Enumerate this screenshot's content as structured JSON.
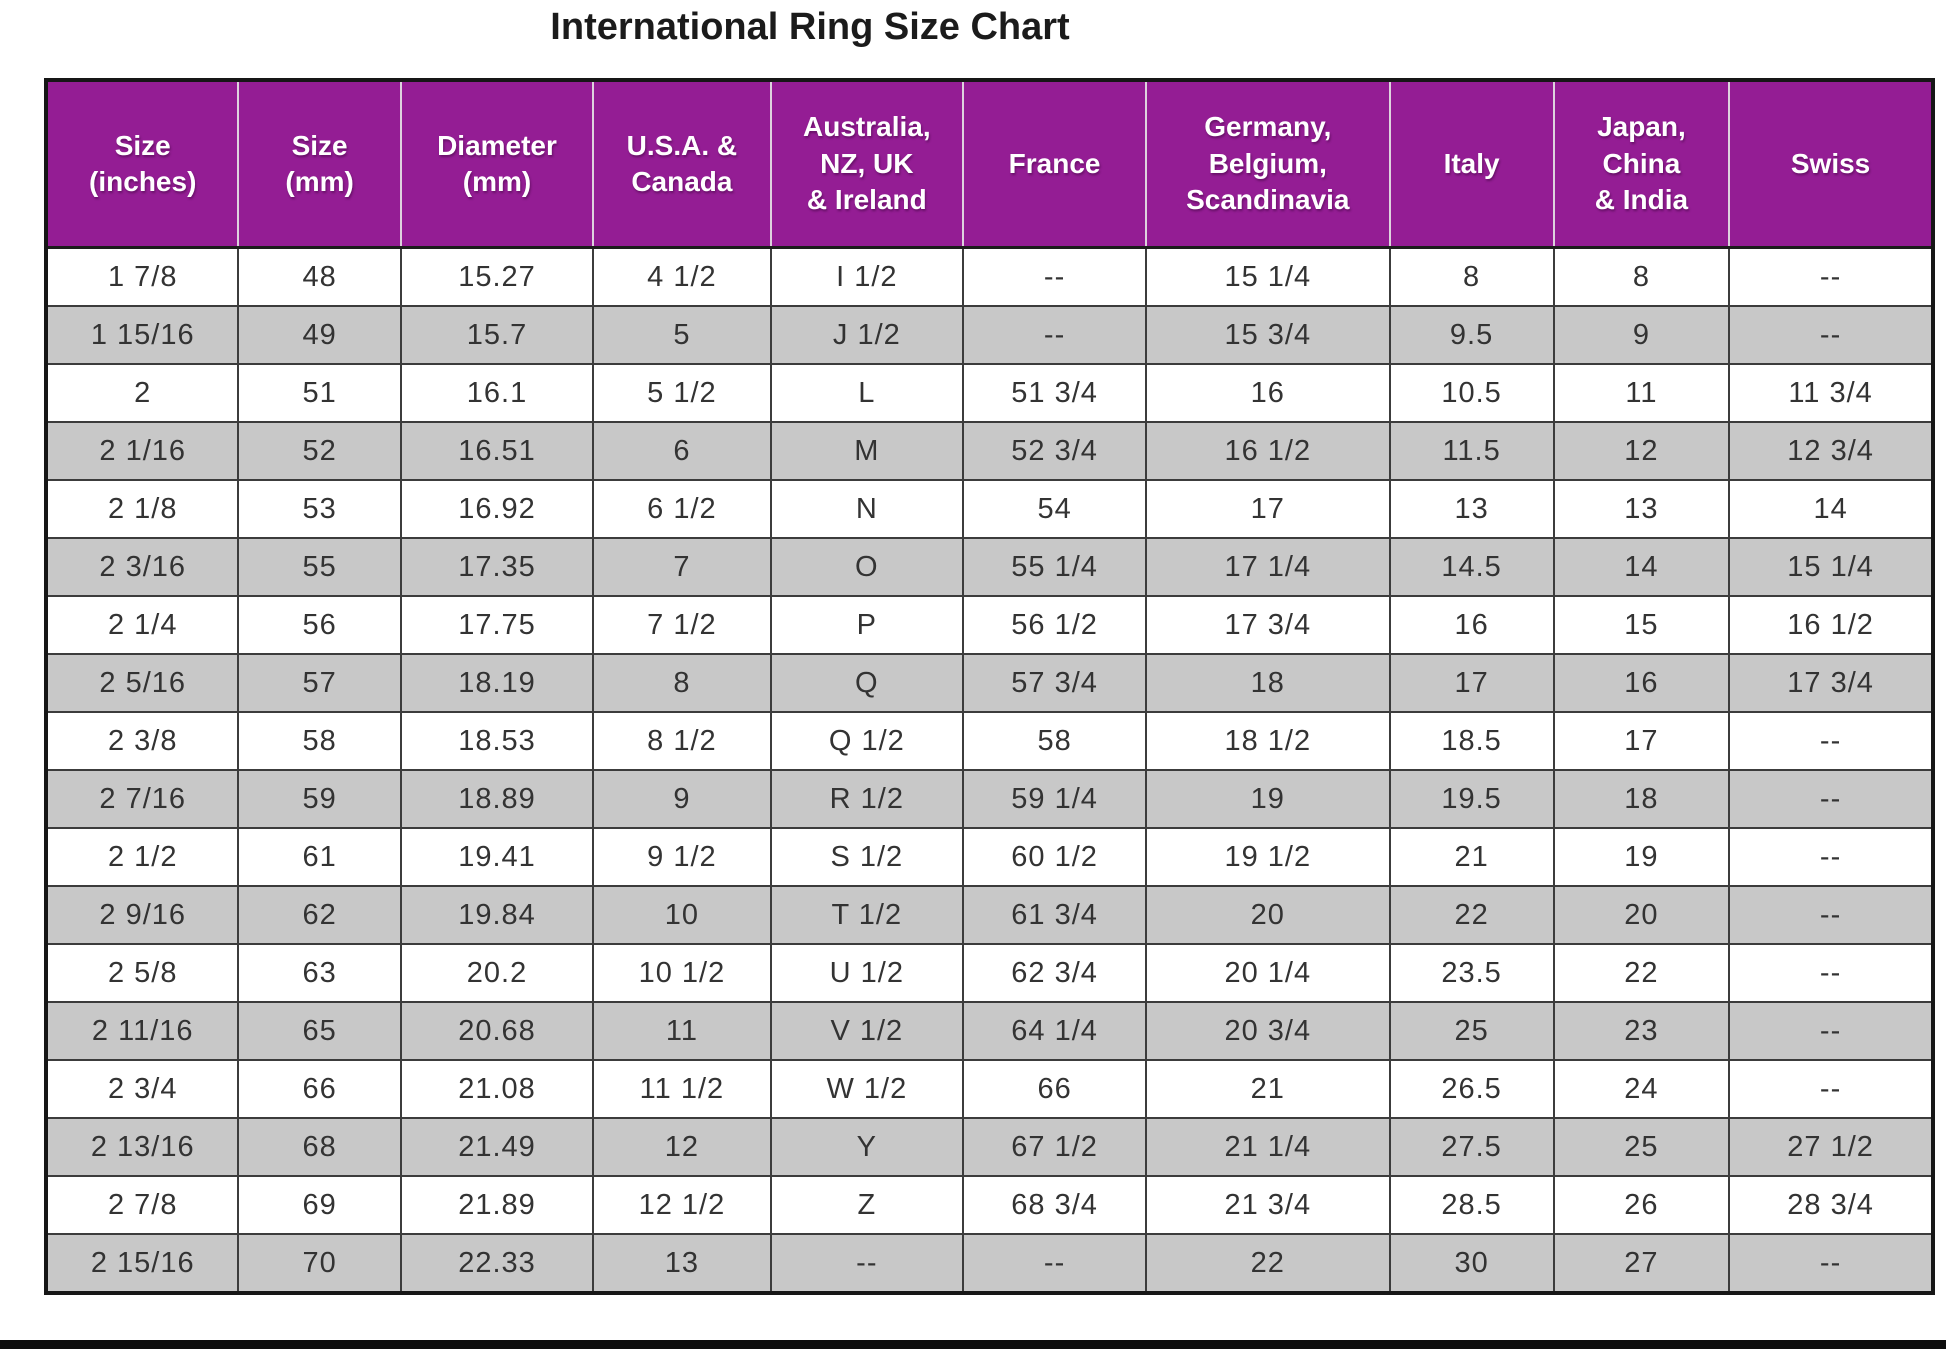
{
  "title": "International Ring Size Chart",
  "colors": {
    "header_bg": "#941d94",
    "header_text": "#ffffff",
    "row_bg": "#ffffff",
    "row_alt_bg": "#c8c8c8",
    "border": "#2e2e2e"
  },
  "chart_data": {
    "type": "table",
    "title": "International Ring Size Chart",
    "columns": [
      "Size\n(inches)",
      "Size\n(mm)",
      "Diameter\n(mm)",
      "U.S.A. &\nCanada",
      "Australia,\nNZ, UK\n& Ireland",
      "France",
      "Germany,\nBelgium,\nScandinavia",
      "Italy",
      "Japan,\nChina\n& India",
      "Swiss"
    ],
    "rows": [
      [
        "1 7/8",
        "48",
        "15.27",
        "4 1/2",
        "I 1/2",
        "--",
        "15 1/4",
        "8",
        "8",
        "--"
      ],
      [
        "1 15/16",
        "49",
        "15.7",
        "5",
        "J 1/2",
        "--",
        "15 3/4",
        "9.5",
        "9",
        "--"
      ],
      [
        "2",
        "51",
        "16.1",
        "5 1/2",
        "L",
        "51 3/4",
        "16",
        "10.5",
        "11",
        "11 3/4"
      ],
      [
        "2 1/16",
        "52",
        "16.51",
        "6",
        "M",
        "52 3/4",
        "16 1/2",
        "11.5",
        "12",
        "12 3/4"
      ],
      [
        "2 1/8",
        "53",
        "16.92",
        "6 1/2",
        "N",
        "54",
        "17",
        "13",
        "13",
        "14"
      ],
      [
        "2 3/16",
        "55",
        "17.35",
        "7",
        "O",
        "55 1/4",
        "17 1/4",
        "14.5",
        "14",
        "15 1/4"
      ],
      [
        "2 1/4",
        "56",
        "17.75",
        "7 1/2",
        "P",
        "56 1/2",
        "17 3/4",
        "16",
        "15",
        "16 1/2"
      ],
      [
        "2 5/16",
        "57",
        "18.19",
        "8",
        "Q",
        "57 3/4",
        "18",
        "17",
        "16",
        "17 3/4"
      ],
      [
        "2 3/8",
        "58",
        "18.53",
        "8 1/2",
        "Q 1/2",
        "58",
        "18 1/2",
        "18.5",
        "17",
        "--"
      ],
      [
        "2 7/16",
        "59",
        "18.89",
        "9",
        "R 1/2",
        "59 1/4",
        "19",
        "19.5",
        "18",
        "--"
      ],
      [
        "2 1/2",
        "61",
        "19.41",
        "9 1/2",
        "S 1/2",
        "60 1/2",
        "19 1/2",
        "21",
        "19",
        "--"
      ],
      [
        "2 9/16",
        "62",
        "19.84",
        "10",
        "T 1/2",
        "61 3/4",
        "20",
        "22",
        "20",
        "--"
      ],
      [
        "2 5/8",
        "63",
        "20.2",
        "10 1/2",
        "U 1/2",
        "62 3/4",
        "20 1/4",
        "23.5",
        "22",
        "--"
      ],
      [
        "2 11/16",
        "65",
        "20.68",
        "11",
        "V 1/2",
        "64 1/4",
        "20 3/4",
        "25",
        "23",
        "--"
      ],
      [
        "2 3/4",
        "66",
        "21.08",
        "11 1/2",
        "W 1/2",
        "66",
        "21",
        "26.5",
        "24",
        "--"
      ],
      [
        "2 13/16",
        "68",
        "21.49",
        "12",
        "Y",
        "67 1/2",
        "21 1/4",
        "27.5",
        "25",
        "27 1/2"
      ],
      [
        "2 7/8",
        "69",
        "21.89",
        "12 1/2",
        "Z",
        "68 3/4",
        "21 3/4",
        "28.5",
        "26",
        "28 3/4"
      ],
      [
        "2 15/16",
        "70",
        "22.33",
        "13",
        "--",
        "--",
        "22",
        "30",
        "27",
        "--"
      ]
    ]
  }
}
